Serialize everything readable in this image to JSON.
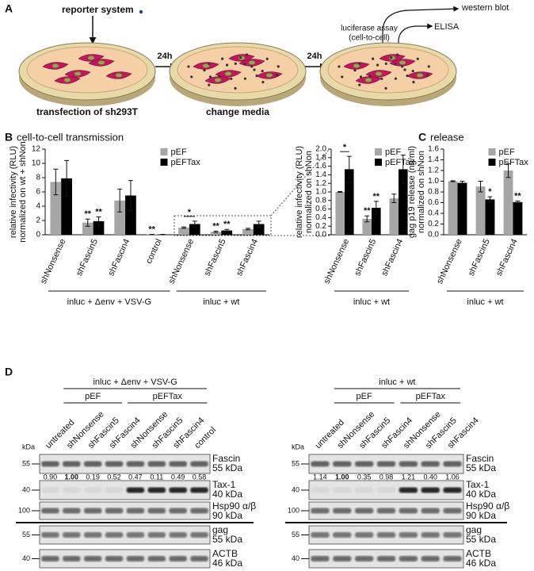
{
  "panel_a": {
    "label": "A",
    "reporter": "reporter system",
    "step1": "transfection of sh293T",
    "interval1": "24h",
    "step2": "change media",
    "interval2": "24h",
    "assay_luciferase": "luciferase assay",
    "assay_luciferase_note": "(cell-to-cell)",
    "assay_western": "western blot",
    "assay_elisa": "ELISA"
  },
  "chart_data": [
    {
      "type": "bar",
      "panel": "B",
      "title": "cell-to-cell transmission",
      "ylabel": [
        "relative infectivity (RLU)",
        "normalized on wt + shNon"
      ],
      "categories": [
        "shNonsense",
        "shFascin5",
        "shFascin4",
        "control",
        "shNonsense",
        "shFascin5",
        "shFascin4"
      ],
      "series": [
        {
          "name": "pEF",
          "color": "#a6a6a6",
          "values": [
            7.4,
            1.7,
            4.8,
            0.05,
            1.0,
            0.4,
            0.8
          ],
          "errors": [
            1.8,
            0.5,
            1.6,
            0,
            0.1,
            0.1,
            0.1
          ],
          "significance": [
            null,
            "**",
            null,
            "**",
            null,
            "**",
            null
          ]
        },
        {
          "name": "pEFTax",
          "color": "#000000",
          "values": [
            7.9,
            1.9,
            5.5,
            0.05,
            1.5,
            0.6,
            1.5
          ],
          "errors": [
            2.5,
            0.6,
            2.1,
            0,
            0.4,
            0.15,
            0.4
          ],
          "significance": [
            null,
            "**",
            null,
            null,
            null,
            "**",
            null
          ]
        }
      ],
      "pair_significance": [
        null,
        null,
        null,
        null,
        "*",
        null,
        null
      ],
      "groups": [
        {
          "label": "inluc + Δenv + VSV-G",
          "count": 4
        },
        {
          "label": "inluc + wt",
          "count": 3
        }
      ],
      "ylim": [
        0,
        12
      ],
      "yticks": [
        0,
        2,
        4,
        6,
        8,
        10,
        12
      ],
      "legend": "top-center"
    },
    {
      "type": "bar",
      "ylabel": [
        "relative infectivity (RLU)",
        "normalized on shNon"
      ],
      "categories": [
        "shNonsense",
        "shFascin5",
        "shFascin4"
      ],
      "series": [
        {
          "name": "pEF",
          "color": "#a6a6a6",
          "values": [
            1.0,
            0.37,
            0.85
          ],
          "errors": [
            0.01,
            0.07,
            0.1
          ],
          "significance": [
            null,
            "**",
            null
          ]
        },
        {
          "name": "pEFTax",
          "color": "#000000",
          "values": [
            1.53,
            0.63,
            1.53
          ],
          "errors": [
            0.3,
            0.15,
            0.33
          ],
          "significance": [
            null,
            "**",
            null
          ]
        }
      ],
      "pair_significance": [
        "*",
        null,
        null
      ],
      "groups": [
        {
          "label": "inluc + wt",
          "count": 3
        }
      ],
      "ylim": [
        0,
        2
      ],
      "yticks": [
        {
          "value": 0,
          "label": "0.0"
        },
        0.2,
        0.4,
        0.6,
        0.8,
        {
          "value": 1,
          "label": "1.0"
        },
        1.2,
        1.4,
        1.6,
        1.8,
        {
          "value": 2,
          "label": "2.0"
        }
      ],
      "legend": "top-center"
    },
    {
      "type": "bar",
      "panel": "C",
      "title": "release",
      "ylabel": [
        "gag p19 release (ng/ml)",
        "normalized on shNon"
      ],
      "categories": [
        "shNonsense",
        "shFascin5",
        "shFascin4"
      ],
      "series": [
        {
          "name": "pEF",
          "color": "#a6a6a6",
          "values": [
            1.0,
            0.9,
            1.2
          ],
          "errors": [
            0.01,
            0.1,
            0.13
          ],
          "significance": [
            null,
            null,
            null
          ]
        },
        {
          "name": "pEFTax",
          "color": "#000000",
          "values": [
            0.97,
            0.66,
            0.61
          ],
          "errors": [
            0.03,
            0.05,
            0.02
          ],
          "significance": [
            null,
            "*",
            "**"
          ]
        }
      ],
      "pair_significance": [
        null,
        null,
        null
      ],
      "groups": [
        {
          "label": "inluc + wt",
          "count": 3
        }
      ],
      "ylim": [
        0,
        1.6
      ],
      "yticks": [
        {
          "value": 0,
          "label": "0.0"
        },
        0.2,
        0.4,
        0.6,
        0.8,
        {
          "value": 1,
          "label": "1.0"
        },
        1.2,
        1.4,
        1.6
      ],
      "legend": "top-center"
    }
  ],
  "panel_d": {
    "label": "D",
    "unit": "kDa",
    "blots": [
      {
        "header": "inluc + Δenv + VSV-G",
        "lanes": [
          "untreated",
          "shNonsense",
          "shFascin5",
          "shFascin4",
          "shNonsense",
          "shFascin5",
          "shFascin4",
          "control"
        ],
        "groups": [
          {
            "label": "pEF",
            "first_lane": 1,
            "lane_count": 3
          },
          {
            "label": "pEFTax",
            "first_lane": 4,
            "lane_count": 4
          }
        ],
        "quant": [
          "0.90",
          "1.00",
          "0.19",
          "0.52",
          "0.47",
          "0.11",
          "0.49",
          "0.58"
        ],
        "reference_lane": 1,
        "rows": [
          {
            "name": "Fascin",
            "size": "55 kDa",
            "marker": 55
          },
          {
            "name": "Tax-1",
            "size": "40 kDa",
            "marker": 40
          },
          {
            "name": "Hsp90 α/β",
            "size": "90 kDa",
            "marker": 100
          },
          {
            "name": "gag",
            "size": "55 kDa",
            "marker": 55
          },
          {
            "name": "ACTB",
            "size": "46 kDa",
            "marker": 40
          }
        ]
      },
      {
        "header": "inluc + wt",
        "lanes": [
          "untreated",
          "shNonsense",
          "shFascin5",
          "shFascin4",
          "shNonsense",
          "shFascin5",
          "shFascin4"
        ],
        "groups": [
          {
            "label": "pEF",
            "first_lane": 1,
            "lane_count": 3
          },
          {
            "label": "pEFTax",
            "first_lane": 4,
            "lane_count": 3
          }
        ],
        "quant": [
          "1.14",
          "1.00",
          "0.35",
          "0.98",
          "1.21",
          "0.40",
          "1.06"
        ],
        "reference_lane": 1,
        "rows": [
          {
            "name": "Fascin",
            "size": "55 kDa",
            "marker": 55
          },
          {
            "name": "Tax-1",
            "size": "40 kDa",
            "marker": 40
          },
          {
            "name": "Hsp90 α/β",
            "size": "90 kDa",
            "marker": 100
          },
          {
            "name": "gag",
            "size": "55 kDa",
            "marker": 55
          },
          {
            "name": "ACTB",
            "size": "46 kDa",
            "marker": 40
          }
        ]
      }
    ]
  }
}
